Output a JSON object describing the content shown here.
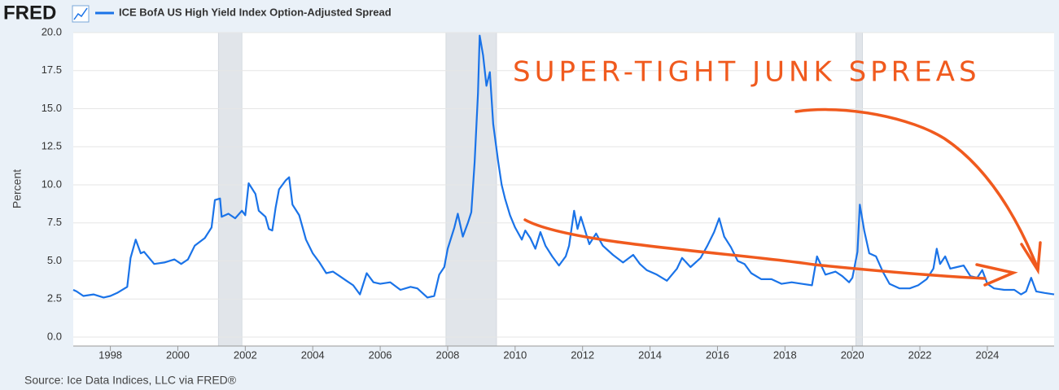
{
  "chart_data": {
    "type": "line",
    "brand": "FRED",
    "title": "ICE BofA US High Yield Index Option-Adjusted Spread",
    "y_label": "Percent",
    "source": "Source: Ice Data Indices, LLC via FRED®",
    "annotation": "SUPER-TIGHT JUNK SPREAS",
    "xlim": [
      1996.9,
      2025.98
    ],
    "xticks": [
      1998,
      2000,
      2002,
      2004,
      2006,
      2008,
      2010,
      2012,
      2014,
      2016,
      2018,
      2020,
      2022,
      2024
    ],
    "ylim": [
      0,
      20
    ],
    "yticks": [
      {
        "value": 0,
        "label": "0.0"
      },
      2.5,
      {
        "value": 5,
        "label": "5.0"
      },
      7.5,
      {
        "value": 10,
        "label": "10.0"
      },
      12.5,
      {
        "value": 15,
        "label": "15.0"
      },
      17.5,
      {
        "value": 20,
        "label": "20.0"
      }
    ],
    "grid": true,
    "recessions": [
      [
        2001.2,
        2001.9
      ],
      [
        2007.95,
        2009.45
      ],
      [
        2020.1,
        2020.3
      ]
    ],
    "recession_color": "#e1e5ea",
    "x": [
      1996.9,
      1997.0,
      1997.2,
      1997.5,
      1997.8,
      1998.0,
      1998.2,
      1998.5,
      1998.6,
      1998.75,
      1998.9,
      1999.0,
      1999.3,
      1999.6,
      1999.9,
      2000.1,
      2000.3,
      2000.5,
      2000.8,
      2001.0,
      2001.1,
      2001.25,
      2001.3,
      2001.5,
      2001.7,
      2001.9,
      2002.0,
      2002.1,
      2002.3,
      2002.4,
      2002.6,
      2002.7,
      2002.8,
      2002.9,
      2003.0,
      2003.2,
      2003.3,
      2003.4,
      2003.6,
      2003.8,
      2004.0,
      2004.2,
      2004.4,
      2004.6,
      2004.8,
      2005.0,
      2005.2,
      2005.4,
      2005.6,
      2005.8,
      2006.0,
      2006.3,
      2006.6,
      2006.9,
      2007.1,
      2007.4,
      2007.6,
      2007.75,
      2007.9,
      2008.0,
      2008.2,
      2008.3,
      2008.45,
      2008.6,
      2008.7,
      2008.8,
      2008.9,
      2008.95,
      2009.05,
      2009.15,
      2009.25,
      2009.35,
      2009.5,
      2009.6,
      2009.7,
      2009.85,
      2010.0,
      2010.2,
      2010.3,
      2010.45,
      2010.6,
      2010.75,
      2010.9,
      2011.1,
      2011.3,
      2011.5,
      2011.6,
      2011.75,
      2011.85,
      2011.95,
      2012.2,
      2012.4,
      2012.6,
      2012.9,
      2013.2,
      2013.5,
      2013.7,
      2013.9,
      2014.2,
      2014.5,
      2014.8,
      2014.95,
      2015.2,
      2015.5,
      2015.7,
      2015.9,
      2016.05,
      2016.2,
      2016.4,
      2016.6,
      2016.8,
      2017.0,
      2017.3,
      2017.6,
      2017.9,
      2018.2,
      2018.5,
      2018.8,
      2018.95,
      2019.2,
      2019.5,
      2019.7,
      2019.9,
      2020.0,
      2020.15,
      2020.22,
      2020.35,
      2020.5,
      2020.7,
      2020.9,
      2021.1,
      2021.4,
      2021.7,
      2021.95,
      2022.2,
      2022.4,
      2022.5,
      2022.6,
      2022.75,
      2022.9,
      2023.1,
      2023.3,
      2023.5,
      2023.7,
      2023.85,
      2024.0,
      2024.2,
      2024.5,
      2024.8,
      2025.0,
      2025.15,
      2025.3,
      2025.45,
      2025.7,
      2025.98
    ],
    "series": [
      {
        "name": "ICE BofA US High Yield Index Option-Adjusted Spread",
        "color": "#1a73e8",
        "values": [
          3.1,
          3.0,
          2.7,
          2.8,
          2.6,
          2.7,
          2.9,
          3.3,
          5.2,
          6.4,
          5.5,
          5.6,
          4.8,
          4.9,
          5.1,
          4.8,
          5.1,
          6.0,
          6.5,
          7.2,
          9.0,
          9.1,
          7.9,
          8.1,
          7.8,
          8.3,
          8.0,
          10.1,
          9.4,
          8.3,
          7.9,
          7.1,
          7.0,
          8.5,
          9.7,
          10.3,
          10.5,
          8.7,
          8.0,
          6.4,
          5.5,
          4.9,
          4.2,
          4.3,
          4.0,
          3.7,
          3.4,
          2.8,
          4.2,
          3.6,
          3.5,
          3.6,
          3.1,
          3.3,
          3.2,
          2.6,
          2.7,
          4.1,
          4.6,
          5.8,
          7.2,
          8.1,
          6.6,
          7.5,
          8.2,
          11.5,
          16.0,
          19.8,
          18.5,
          16.5,
          17.4,
          14.0,
          11.5,
          10.0,
          9.1,
          8.0,
          7.2,
          6.4,
          7.0,
          6.5,
          5.8,
          6.9,
          6.0,
          5.3,
          4.7,
          5.3,
          6.0,
          8.3,
          7.1,
          7.9,
          6.1,
          6.8,
          6.0,
          5.4,
          4.9,
          5.4,
          4.8,
          4.4,
          4.1,
          3.7,
          4.5,
          5.2,
          4.6,
          5.2,
          6.0,
          6.9,
          7.8,
          6.6,
          5.9,
          5.0,
          4.8,
          4.2,
          3.8,
          3.8,
          3.5,
          3.6,
          3.5,
          3.4,
          5.3,
          4.1,
          4.3,
          4.0,
          3.6,
          3.9,
          5.6,
          8.7,
          7.0,
          5.5,
          5.3,
          4.3,
          3.5,
          3.2,
          3.2,
          3.4,
          3.8,
          4.5,
          5.8,
          4.8,
          5.3,
          4.5,
          4.6,
          4.7,
          4.0,
          3.9,
          4.4,
          3.5,
          3.2,
          3.1,
          3.1,
          2.8,
          3.0,
          3.9,
          3.0,
          2.9,
          2.8
        ]
      }
    ]
  }
}
